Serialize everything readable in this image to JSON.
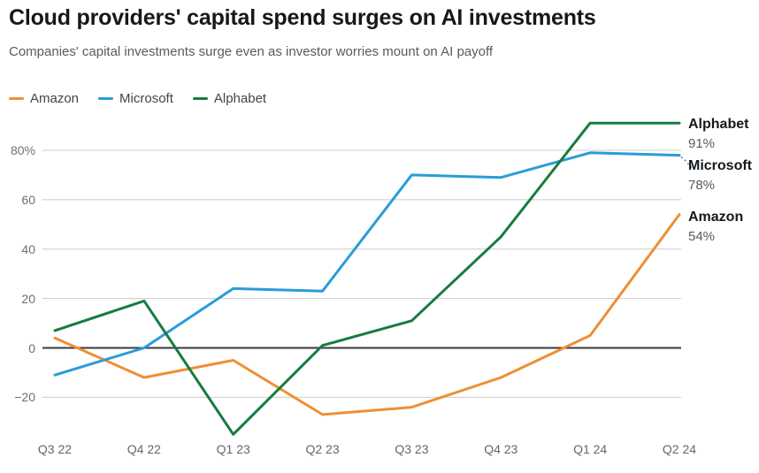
{
  "header": {
    "title": "Cloud providers' capital spend surges on AI investments",
    "subtitle": "Companies' capital investments surge even as investor worries mount on AI payoff"
  },
  "colors": {
    "amazon": "#EE8F33",
    "microsoft": "#2B9CD8",
    "alphabet": "#177B3E",
    "gridline": "#cccccc",
    "zeroline": "#3a3a3a",
    "tick_text": "#6e6e6e"
  },
  "legend": [
    {
      "label": "Amazon",
      "color": "#EE8F33"
    },
    {
      "label": "Microsoft",
      "color": "#2B9CD8"
    },
    {
      "label": "Alphabet",
      "color": "#177B3E"
    }
  ],
  "chart_data": {
    "type": "line",
    "title": "Cloud providers' capital spend surges on AI investments",
    "subtitle": "Companies' capital investments surge even as investor worries mount on AI payoff",
    "categories": [
      "Q3 22",
      "Q4 22",
      "Q1 23",
      "Q2 23",
      "Q3 23",
      "Q4 23",
      "Q1 24",
      "Q2 24"
    ],
    "series": [
      {
        "name": "Amazon",
        "color": "#EE8F33",
        "values": [
          4,
          -12,
          -5,
          -27,
          -24,
          -12,
          5,
          54
        ],
        "end_label": "Amazon",
        "end_value_label": "54%"
      },
      {
        "name": "Microsoft",
        "color": "#2B9CD8",
        "values": [
          -11,
          0,
          24,
          23,
          70,
          69,
          79,
          78
        ],
        "end_label": "Microsoft",
        "end_value_label": "78%"
      },
      {
        "name": "Alphabet",
        "color": "#177B3E",
        "values": [
          7,
          19,
          -35,
          1,
          11,
          45,
          91,
          91
        ],
        "end_label": "Alphabet",
        "end_value_label": "91%"
      }
    ],
    "xlabel": "",
    "ylabel": "",
    "unit": "percent (year-over-year change)",
    "yticks": [
      80,
      60,
      40,
      20,
      0,
      -20
    ],
    "ytick_labels": [
      "80%",
      "60",
      "40",
      "20",
      "0",
      "−20"
    ],
    "ylim": [
      -38,
      97
    ],
    "grid": true,
    "legend_position": "top-left"
  }
}
